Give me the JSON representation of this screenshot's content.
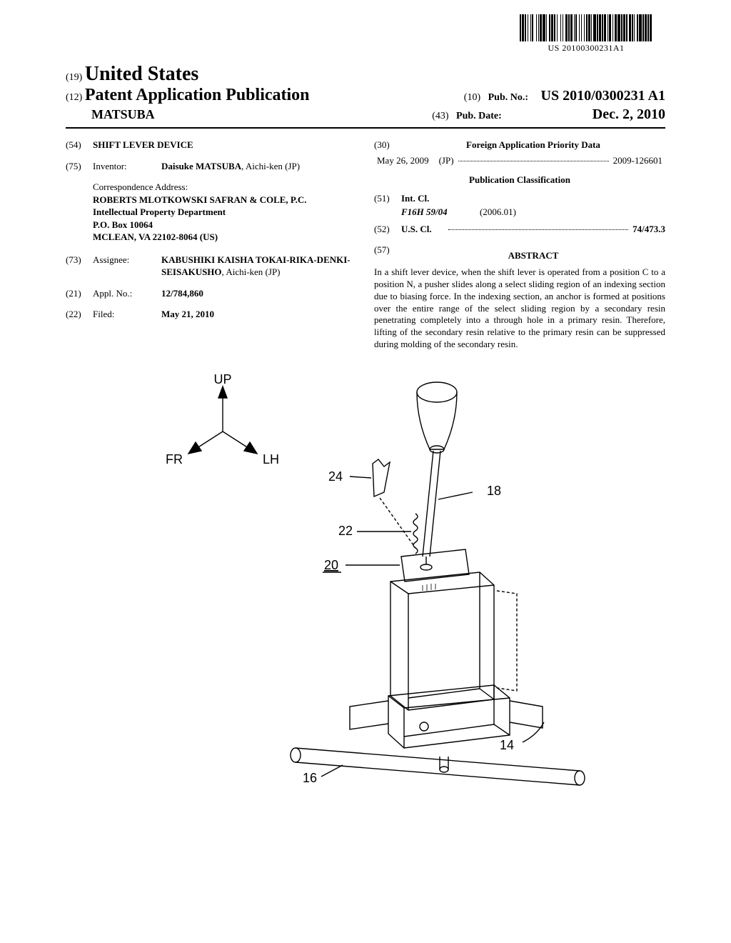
{
  "barcode": {
    "text": "US 20100300231A1",
    "widths": [
      2,
      1,
      3,
      1,
      2,
      2,
      1,
      3,
      1,
      1,
      2,
      4,
      1,
      2,
      1,
      1,
      3,
      1,
      4,
      1,
      1,
      3,
      2,
      1,
      3,
      1,
      2,
      2,
      1,
      4,
      1,
      2,
      1,
      3,
      3,
      1,
      2,
      1,
      3,
      2,
      1,
      1,
      2,
      3,
      1,
      2,
      1,
      3,
      1,
      2,
      2,
      1,
      3,
      1,
      1,
      2,
      4,
      1,
      2,
      1,
      3,
      1,
      2,
      1,
      3,
      2,
      1,
      1,
      3,
      2,
      1,
      2,
      3,
      1,
      4,
      1,
      2,
      1,
      3,
      1,
      2,
      2,
      3,
      1,
      2,
      1,
      1,
      3,
      2,
      1,
      4,
      1,
      2,
      1,
      3,
      1,
      2,
      1,
      3,
      1
    ]
  },
  "header": {
    "code19": "(19)",
    "country": "United States",
    "code12": "(12)",
    "pubType": "Patent Application Publication",
    "author": "MATSUBA",
    "code10": "(10)",
    "pubNoLabel": "Pub. No.:",
    "pubNo": "US 2010/0300231 A1",
    "code43": "(43)",
    "pubDateLabel": "Pub. Date:",
    "pubDate": "Dec. 2, 2010"
  },
  "left": {
    "title": {
      "code": "(54)",
      "value": "SHIFT LEVER DEVICE"
    },
    "inventor": {
      "code": "(75)",
      "label": "Inventor:",
      "name": "Daisuke MATSUBA",
      "residence": ", Aichi-ken (JP)"
    },
    "correspondence": {
      "heading": "Correspondence Address:",
      "line1": "ROBERTS MLOTKOWSKI SAFRAN & COLE, P.C.",
      "line2": "Intellectual Property Department",
      "line3": "P.O. Box 10064",
      "line4": "MCLEAN, VA 22102-8064 (US)"
    },
    "assignee": {
      "code": "(73)",
      "label": "Assignee:",
      "name": "KABUSHIKI KAISHA TOKAI-RIKA-DENKI-SEISAKUSHO",
      "residence": ", Aichi-ken (JP)"
    },
    "applNo": {
      "code": "(21)",
      "label": "Appl. No.:",
      "value": "12/784,860"
    },
    "filed": {
      "code": "(22)",
      "label": "Filed:",
      "value": "May 21, 2010"
    }
  },
  "right": {
    "foreignHead": {
      "code": "(30)",
      "text": "Foreign Application Priority Data"
    },
    "priority": {
      "date": "May 26, 2009",
      "country": "(JP)",
      "number": "2009-126601"
    },
    "pubClassHead": "Publication Classification",
    "intCl": {
      "code": "(51)",
      "label": "Int. Cl.",
      "symbol": "F16H 59/04",
      "edition": "(2006.01)"
    },
    "usCl": {
      "code": "(52)",
      "label": "U.S. Cl.",
      "value": "74/473.3"
    },
    "abstractHead": {
      "code": "(57)",
      "text": "ABSTRACT"
    },
    "abstract": "In a shift lever device, when the shift lever is operated from a position C to a position N, a pusher slides along a select sliding region of an indexing section due to biasing force. In the indexing section, an anchor is formed at positions over the entire range of the select sliding region by a secondary resin penetrating completely into a through hole in a primary resin. Therefore, lifting of the secondary resin relative to the primary resin can be suppressed during molding of the secondary resin."
  },
  "figure": {
    "axes": {
      "up": "UP",
      "fr": "FR",
      "lh": "LH"
    },
    "callouts": {
      "c24": "24",
      "c22": "22",
      "c20": "20",
      "c18": "18",
      "c16": "16",
      "c14": "14"
    },
    "style": {
      "stroke": "#000000",
      "strokeWidth": 1.4,
      "fontSize": 18,
      "axisFontSize": 18
    }
  }
}
